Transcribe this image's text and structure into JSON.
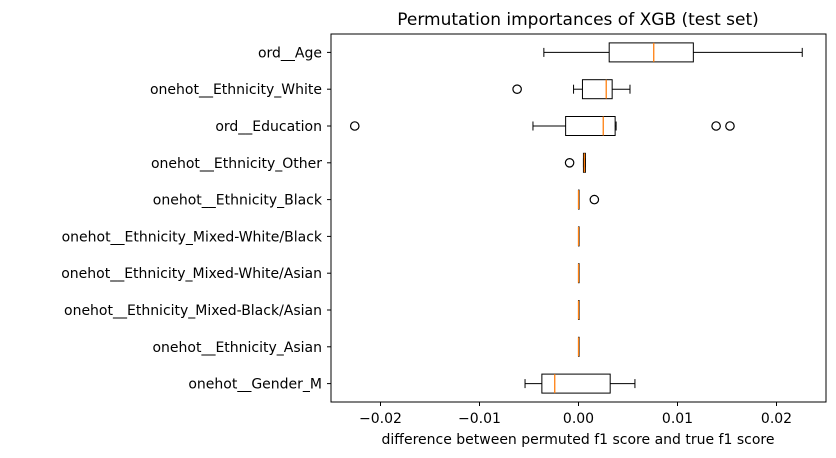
{
  "chart_data": {
    "type": "boxplot",
    "orientation": "horizontal",
    "title": "Permutation importances of XGB (test set)",
    "xlabel": "difference between permuted f1 score and true f1 score",
    "ylabel": "",
    "xlim": [
      -0.025,
      0.025
    ],
    "xticks": [
      -0.02,
      -0.01,
      0.0,
      0.01,
      0.02
    ],
    "xtick_labels": [
      "−0.02",
      "−0.01",
      "0.00",
      "0.01",
      "0.02"
    ],
    "grid": false,
    "legend": "none",
    "box_color": "#000000",
    "median_color": "#ff7f0e",
    "categories": [
      "ord__Age",
      "onehot__Ethnicity_White",
      "ord__Education",
      "onehot__Ethnicity_Other",
      "onehot__Ethnicity_Black",
      "onehot__Ethnicity_Mixed-White/Black",
      "onehot__Ethnicity_Mixed-White/Asian",
      "onehot__Ethnicity_Mixed-Black/Asian",
      "onehot__Ethnicity_Asian",
      "onehot__Gender_M"
    ],
    "boxes": [
      {
        "label": "ord__Age",
        "whislo": -0.0035,
        "q1": 0.0031,
        "median": 0.0076,
        "q3": 0.0116,
        "whishi": 0.0226,
        "fliers": []
      },
      {
        "label": "onehot__Ethnicity_White",
        "whislo": -0.0005,
        "q1": 0.0004,
        "median": 0.0028,
        "q3": 0.0034,
        "whishi": 0.0052,
        "fliers": [
          -0.0062
        ]
      },
      {
        "label": "ord__Education",
        "whislo": -0.0046,
        "q1": -0.0013,
        "median": 0.0025,
        "q3": 0.0037,
        "whishi": 0.0038,
        "fliers": [
          -0.0226,
          0.0139,
          0.0153
        ]
      },
      {
        "label": "onehot__Ethnicity_Other",
        "whislo": 0.0005,
        "q1": 0.0005,
        "median": 0.0006,
        "q3": 0.0007,
        "whishi": 0.0007,
        "fliers": [
          -0.0009
        ]
      },
      {
        "label": "onehot__Ethnicity_Black",
        "whislo": 0.0,
        "q1": 0.0,
        "median": 0.0,
        "q3": 0.0,
        "whishi": 0.0,
        "fliers": [
          0.0016
        ]
      },
      {
        "label": "onehot__Ethnicity_Mixed-White/Black",
        "whislo": 0.0,
        "q1": 0.0,
        "median": 0.0,
        "q3": 0.0,
        "whishi": 0.0,
        "fliers": []
      },
      {
        "label": "onehot__Ethnicity_Mixed-White/Asian",
        "whislo": 0.0,
        "q1": 0.0,
        "median": 0.0,
        "q3": 0.0,
        "whishi": 0.0,
        "fliers": []
      },
      {
        "label": "onehot__Ethnicity_Mixed-Black/Asian",
        "whislo": 0.0,
        "q1": 0.0,
        "median": 0.0,
        "q3": 0.0,
        "whishi": 0.0,
        "fliers": []
      },
      {
        "label": "onehot__Ethnicity_Asian",
        "whislo": 0.0,
        "q1": 0.0,
        "median": 0.0,
        "q3": 0.0,
        "whishi": 0.0,
        "fliers": []
      },
      {
        "label": "onehot__Gender_M",
        "whislo": -0.0054,
        "q1": -0.0037,
        "median": -0.0024,
        "q3": 0.0032,
        "whishi": 0.0057,
        "fliers": []
      }
    ]
  }
}
